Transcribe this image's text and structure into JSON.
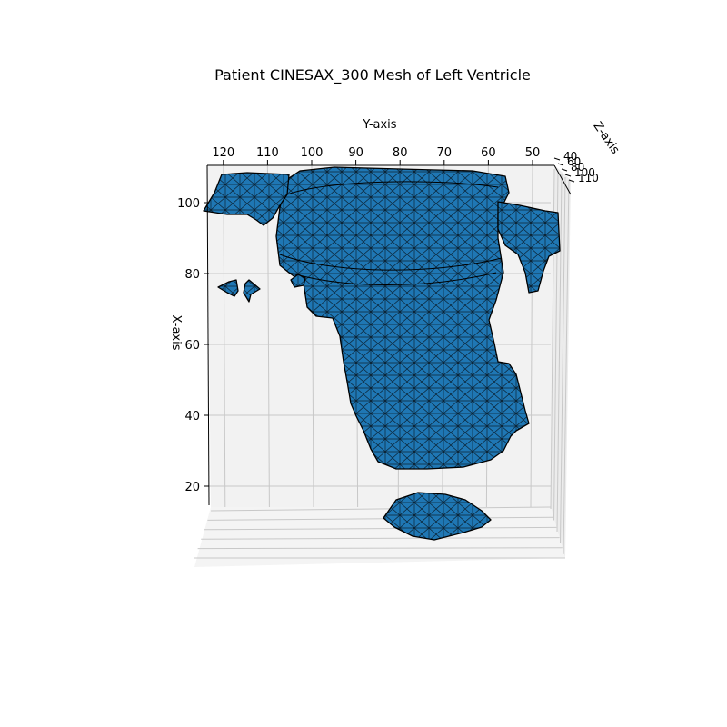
{
  "chart_data": {
    "type": "surface3d",
    "title": "Patient CINESAX_300 Mesh of Left Ventricle",
    "xlabel": "X-axis",
    "ylabel": "Y-axis",
    "zlabel": "Z-axis",
    "x_ticks": [
      20,
      40,
      60,
      80,
      100
    ],
    "y_ticks": [
      120,
      110,
      100,
      90,
      80,
      70,
      60,
      50
    ],
    "z_ticks": [
      40,
      60,
      80,
      100,
      110
    ],
    "x_range": [
      10,
      110
    ],
    "y_range": [
      45,
      125
    ],
    "z_range": [
      35,
      115
    ],
    "grid": true,
    "mesh_color": "#1f77b4",
    "edge_color": "#000000",
    "pane_color": "#f2f2f2",
    "grid_color": "#c8c8c8"
  }
}
